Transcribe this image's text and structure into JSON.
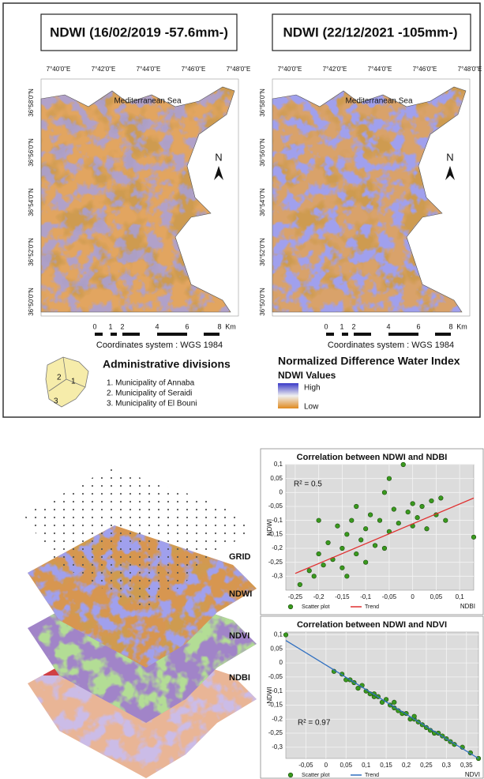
{
  "maps": [
    {
      "title": "NDWI (16/02/2019 -57.6mm-)",
      "longitudes": [
        "7°40'0\"E",
        "7°42'0\"E",
        "7°44'0\"E",
        "7°46'0\"E",
        "7°48'0\"E"
      ],
      "latitudes": [
        "36°58'0\"N",
        "36°56'0\"N",
        "36°54'0\"N",
        "36°52'0\"N",
        "36°50'0\"N"
      ],
      "sea": "Mediterranean Sea",
      "north": "N",
      "scale": [
        "0",
        "1",
        "2",
        "4",
        "6",
        "8",
        "Km"
      ],
      "coordinates": "Coordinates system : WGS 1984"
    },
    {
      "title": "NDWI (22/12/2021 -105mm-)",
      "longitudes": [
        "7°40'0\"E",
        "7°42'0\"E",
        "7°44'0\"E",
        "7°46'0\"E",
        "7°48'0\"E"
      ],
      "latitudes": [
        "36°58'0\"N",
        "36°56'0\"N",
        "36°54'0\"N",
        "36°52'0\"N",
        "36°50'0\"N"
      ],
      "sea": "Mediterranean Sea",
      "north": "N",
      "scale": [
        "0",
        "1",
        "2",
        "4",
        "6",
        "8",
        "Km"
      ],
      "coordinates": "Coordinates system : WGS 1984"
    }
  ],
  "admin": {
    "title": "Administrative divisions",
    "map_labels": [
      "2",
      "1",
      "3"
    ],
    "items": [
      "1. Municipality of  Annaba",
      "2. Municipality of  Seraidi",
      "3. Municipality of  El Bouni"
    ]
  },
  "legend": {
    "title": "Normalized Difference Water Index",
    "subtitle": "NDWI Values",
    "high": "High",
    "low": "Low"
  },
  "layers": [
    "GRID",
    "NDWI",
    "NDVI",
    "NDBI"
  ],
  "chart_data": [
    {
      "type": "scatter",
      "title": "Correlation between NDWI and NDBI",
      "x_label": "NDBI",
      "y_label": "NDWI",
      "annotation": "R² = 0.5",
      "xlim": [
        -0.27,
        0.13
      ],
      "ylim": [
        -0.35,
        0.1
      ],
      "xticks": [
        {
          "value": -0.25,
          "label": "-0,25"
        },
        {
          "value": -0.2,
          "label": "-0,2"
        },
        {
          "value": -0.15,
          "label": "-0,15"
        },
        {
          "value": -0.1,
          "label": "-0,1"
        },
        {
          "value": -0.05,
          "label": "-0,05"
        },
        0,
        {
          "value": 0.05,
          "label": "0,05"
        },
        {
          "value": 0.1,
          "label": "0,1"
        }
      ],
      "yticks": [
        {
          "value": 0.1,
          "label": "0,1"
        },
        {
          "value": 0.05,
          "label": "0,05"
        },
        0,
        {
          "value": -0.05,
          "label": "-0,05"
        },
        {
          "value": -0.1,
          "label": "-0,1"
        },
        {
          "value": -0.15,
          "label": "-0,15"
        },
        {
          "value": -0.2,
          "label": "-0,2"
        },
        {
          "value": -0.25,
          "label": "-0,25"
        },
        {
          "value": -0.3,
          "label": "-0,3"
        }
      ],
      "grid": true,
      "series": [
        {
          "name": "Scatter plot",
          "color": "#3a9a1e",
          "style": "points",
          "x": [
            -0.24,
            -0.22,
            -0.21,
            -0.2,
            -0.19,
            -0.18,
            -0.17,
            -0.16,
            -0.15,
            -0.15,
            -0.14,
            -0.13,
            -0.12,
            -0.12,
            -0.11,
            -0.1,
            -0.1,
            -0.09,
            -0.08,
            -0.07,
            -0.06,
            -0.05,
            -0.05,
            -0.04,
            -0.03,
            -0.02,
            -0.01,
            0,
            0,
            0.01,
            0.02,
            0.03,
            0.04,
            0.05,
            0.06,
            0.07,
            -0.14,
            -0.06,
            -0.2,
            0.13
          ],
          "values": [
            -0.33,
            -0.28,
            -0.3,
            -0.22,
            -0.26,
            -0.18,
            -0.24,
            -0.12,
            -0.2,
            -0.27,
            -0.15,
            -0.1,
            -0.22,
            -0.05,
            -0.17,
            -0.13,
            -0.25,
            -0.08,
            -0.19,
            -0.1,
            0.0,
            0.05,
            -0.14,
            -0.06,
            -0.11,
            0.1,
            -0.07,
            -0.04,
            -0.12,
            -0.09,
            -0.05,
            -0.13,
            -0.03,
            -0.08,
            -0.02,
            -0.1,
            -0.3,
            -0.2,
            -0.1,
            -0.16
          ]
        },
        {
          "name": "Trend",
          "color": "#e03030",
          "style": "line",
          "x": [
            -0.25,
            0.13
          ],
          "values": [
            -0.29,
            -0.02
          ]
        }
      ]
    },
    {
      "type": "scatter",
      "title": "Correlation between NDWI and NDVI",
      "x_label": "NDVI",
      "y_label": "NDWI",
      "annotation": "R² = 0.97",
      "xlim": [
        -0.1,
        0.38
      ],
      "ylim": [
        -0.34,
        0.11
      ],
      "xticks": [
        {
          "value": -0.05,
          "label": "-0,05"
        },
        0,
        {
          "value": 0.05,
          "label": "0,05"
        },
        {
          "value": 0.1,
          "label": "0,1"
        },
        {
          "value": 0.15,
          "label": "0,15"
        },
        {
          "value": 0.2,
          "label": "0,2"
        },
        {
          "value": 0.25,
          "label": "0,25"
        },
        {
          "value": 0.3,
          "label": "0,3"
        },
        {
          "value": 0.35,
          "label": "0,35"
        }
      ],
      "yticks": [
        {
          "value": 0.1,
          "label": "0,1"
        },
        {
          "value": 0.05,
          "label": "0,05"
        },
        0,
        {
          "value": -0.05,
          "label": "-0,05"
        },
        {
          "value": -0.1,
          "label": "-0,1"
        },
        {
          "value": -0.15,
          "label": "-0,15"
        },
        {
          "value": -0.2,
          "label": "-0,2"
        },
        {
          "value": -0.25,
          "label": "-0,25"
        },
        {
          "value": -0.3,
          "label": "-0,3"
        }
      ],
      "grid": true,
      "series": [
        {
          "name": "Scatter plot",
          "color": "#3a9a1e",
          "style": "points",
          "x": [
            -0.1,
            0.02,
            0.04,
            0.06,
            0.07,
            0.08,
            0.09,
            0.1,
            0.11,
            0.12,
            0.13,
            0.14,
            0.15,
            0.16,
            0.17,
            0.18,
            0.19,
            0.2,
            0.21,
            0.22,
            0.23,
            0.24,
            0.25,
            0.26,
            0.27,
            0.28,
            0.29,
            0.3,
            0.31,
            0.32,
            0.34,
            0.36,
            0.38,
            0.05,
            0.12,
            0.17,
            0.22
          ],
          "values": [
            0.1,
            -0.03,
            -0.04,
            -0.06,
            -0.07,
            -0.09,
            -0.08,
            -0.1,
            -0.11,
            -0.12,
            -0.12,
            -0.14,
            -0.13,
            -0.15,
            -0.16,
            -0.17,
            -0.18,
            -0.18,
            -0.2,
            -0.2,
            -0.21,
            -0.22,
            -0.23,
            -0.24,
            -0.25,
            -0.25,
            -0.26,
            -0.27,
            -0.28,
            -0.29,
            -0.3,
            -0.32,
            -0.34,
            -0.06,
            -0.11,
            -0.14,
            -0.19
          ]
        },
        {
          "name": "Trend",
          "color": "#2f6fc0",
          "style": "line",
          "x": [
            -0.1,
            0.38
          ],
          "values": [
            0.08,
            -0.34
          ]
        }
      ]
    }
  ]
}
